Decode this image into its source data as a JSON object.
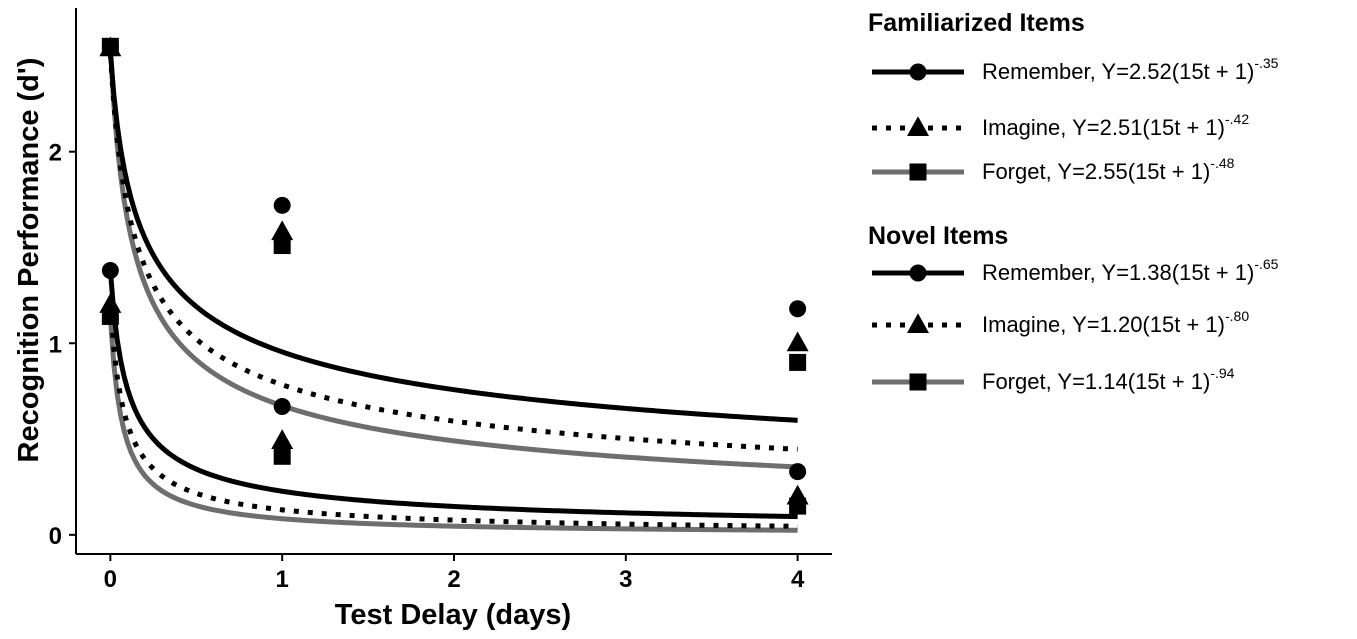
{
  "chart_data": {
    "type": "line",
    "xlabel": "Test Delay (days)",
    "ylabel": "Recognition Performance (d')",
    "xlim": [
      -0.2,
      4.2
    ],
    "ylim": [
      -0.1,
      2.75
    ],
    "x_ticks": [
      "0",
      "1",
      "2",
      "3",
      "4"
    ],
    "y_ticks": [
      "0",
      "1",
      "2"
    ],
    "grid": false,
    "legend_position": "right",
    "points_x": [
      0,
      1,
      4
    ],
    "groups": [
      {
        "title": "Familiarized Items",
        "series": [
          {
            "name": "Remember",
            "formula_prefix": "Remember, Y=2.52(15t + 1)",
            "exponent": "-.35",
            "a": 2.52,
            "b": -0.35,
            "style": "solid",
            "color": "#000000",
            "marker": "circle",
            "points": [
              2.55,
              1.72,
              1.18
            ]
          },
          {
            "name": "Imagine",
            "formula_prefix": "Imagine, Y=2.51(15t + 1)",
            "exponent": "-.42",
            "a": 2.51,
            "b": -0.42,
            "style": "dotted",
            "color": "#000000",
            "marker": "triangle",
            "points": [
              2.54,
              1.58,
              1.0
            ]
          },
          {
            "name": "Forget",
            "formula_prefix": "Forget, Y=2.55(15t + 1)",
            "exponent": "-.48",
            "a": 2.55,
            "b": -0.48,
            "style": "solid",
            "color": "#6e6e6e",
            "marker": "square",
            "points": [
              2.55,
              1.51,
              0.9
            ]
          }
        ]
      },
      {
        "title": "Novel Items",
        "series": [
          {
            "name": "Remember",
            "formula_prefix": "Remember, Y=1.38(15t + 1)",
            "exponent": "-.65",
            "a": 1.38,
            "b": -0.65,
            "style": "solid",
            "color": "#000000",
            "marker": "circle",
            "points": [
              1.38,
              0.67,
              0.33
            ]
          },
          {
            "name": "Imagine",
            "formula_prefix": "Imagine, Y=1.20(15t + 1)",
            "exponent": "-.80",
            "a": 1.2,
            "b": -0.8,
            "style": "dotted",
            "color": "#000000",
            "marker": "triangle",
            "points": [
              1.2,
              0.49,
              0.2
            ]
          },
          {
            "name": "Forget",
            "formula_prefix": "Forget, Y=1.14(15t + 1)",
            "exponent": "-.94",
            "a": 1.14,
            "b": -0.94,
            "style": "solid",
            "color": "#6e6e6e",
            "marker": "square",
            "points": [
              1.14,
              0.41,
              0.15
            ]
          }
        ]
      }
    ]
  }
}
